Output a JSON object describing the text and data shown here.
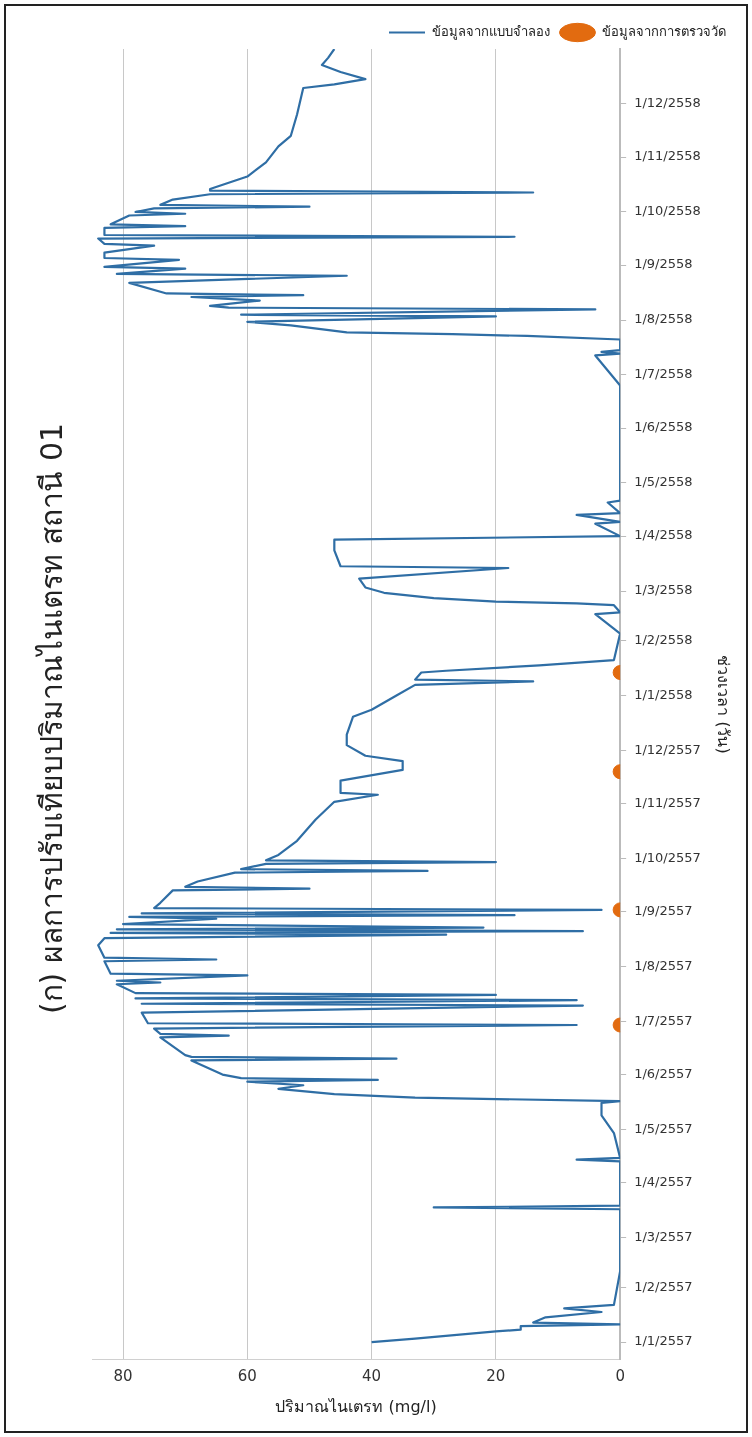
{
  "chart_data": {
    "type": "line",
    "title": "(ก) ผลการปรับเทียบปริมาณไนเตรท สถานี 01",
    "xlabel": "ปริมาณไนเตรท (mg/l)",
    "ylabel": "ช่วงเวลา (วัน)",
    "orientation": "horizontal",
    "xlim": [
      85,
      0
    ],
    "xticks": [
      0,
      20,
      40,
      60,
      80
    ],
    "ylim": [
      "2556-12-22",
      "2559-01-01"
    ],
    "yticks": [
      {
        "value": "2557-01-01",
        "label": "1/1/2557"
      },
      {
        "value": "2557-02-01",
        "label": "1/2/2557"
      },
      {
        "value": "2557-03-01",
        "label": "1/3/2557"
      },
      {
        "value": "2557-04-01",
        "label": "1/4/2557"
      },
      {
        "value": "2557-05-01",
        "label": "1/5/2557"
      },
      {
        "value": "2557-06-01",
        "label": "1/6/2557"
      },
      {
        "value": "2557-07-01",
        "label": "1/7/2557"
      },
      {
        "value": "2557-08-01",
        "label": "1/8/2557"
      },
      {
        "value": "2557-09-01",
        "label": "1/9/2557"
      },
      {
        "value": "2557-10-01",
        "label": "1/10/2557"
      },
      {
        "value": "2557-11-01",
        "label": "1/11/2557"
      },
      {
        "value": "2557-12-01",
        "label": "1/12/2557"
      },
      {
        "value": "2558-01-01",
        "label": "1/1/2558"
      },
      {
        "value": "2558-02-01",
        "label": "1/2/2558"
      },
      {
        "value": "2558-03-01",
        "label": "1/3/2558"
      },
      {
        "value": "2558-04-01",
        "label": "1/4/2558"
      },
      {
        "value": "2558-05-01",
        "label": "1/5/2558"
      },
      {
        "value": "2558-06-01",
        "label": "1/6/2558"
      },
      {
        "value": "2558-07-01",
        "label": "1/7/2558"
      },
      {
        "value": "2558-08-01",
        "label": "1/8/2558"
      },
      {
        "value": "2558-09-01",
        "label": "1/9/2558"
      },
      {
        "value": "2558-10-01",
        "label": "1/10/2558"
      },
      {
        "value": "2558-11-01",
        "label": "1/11/2558"
      },
      {
        "value": "2558-12-01",
        "label": "1/12/2558"
      }
    ],
    "grid": "x",
    "legend": "top right",
    "line_style": "solid",
    "series": [
      {
        "name": "ข้อมูลจากแบบจำลอง",
        "color": "#2f6ea5",
        "x": [
          "2557-01-01",
          "2557-01-03",
          "2557-01-07",
          "2557-01-08",
          "2557-01-10",
          "2557-01-11",
          "2557-01-12",
          "2557-01-15",
          "2557-01-18",
          "2557-01-20",
          "2557-01-22",
          "2557-02-10",
          "2557-03-02",
          "2557-03-17",
          "2557-03-18",
          "2557-03-19",
          "2557-04-13",
          "2557-04-14",
          "2557-04-15",
          "2557-04-29",
          "2557-05-09",
          "2557-05-16",
          "2557-05-17",
          "2557-05-19",
          "2557-05-21",
          "2557-05-24",
          "2557-05-26",
          "2557-05-28",
          "2557-05-29",
          "2557-05-30",
          "2557-06-01",
          "2557-06-09",
          "2557-06-10",
          "2557-06-11",
          "2557-06-12",
          "2557-06-22",
          "2557-06-23",
          "2557-06-24",
          "2557-06-27",
          "2557-06-29",
          "2557-06-30",
          "2557-07-06",
          "2557-07-10",
          "2557-07-11",
          "2557-07-13",
          "2557-07-14",
          "2557-07-16",
          "2557-07-17",
          "2557-07-22",
          "2557-07-23",
          "2557-07-24",
          "2557-07-27",
          "2557-07-28",
          "2557-08-04",
          "2557-08-05",
          "2557-08-06",
          "2557-08-13",
          "2557-08-17",
          "2557-08-19",
          "2557-08-20",
          "2557-08-21",
          "2557-08-22",
          "2557-08-23",
          "2557-08-25",
          "2557-08-28",
          "2557-08-29",
          "2557-08-30",
          "2557-08-31",
          "2557-09-02",
          "2557-09-03",
          "2557-09-06",
          "2557-09-13",
          "2557-09-14",
          "2557-09-15",
          "2557-09-18",
          "2557-09-23",
          "2557-09-24",
          "2557-09-25",
          "2557-09-28",
          "2557-09-29",
          "2557-09-30",
          "2557-10-03",
          "2557-10-11",
          "2557-10-23",
          "2557-11-02",
          "2557-11-06",
          "2557-11-07",
          "2557-11-14",
          "2557-11-20",
          "2557-11-25",
          "2557-11-28",
          "2557-12-04",
          "2557-12-10",
          "2557-12-20",
          "2557-12-24",
          "2558-01-01",
          "2558-01-07",
          "2558-01-09",
          "2558-01-10",
          "2558-01-14",
          "2558-01-15",
          "2558-01-18",
          "2558-01-21",
          "2558-02-05",
          "2558-02-16",
          "2558-02-17",
          "2558-02-21",
          "2558-02-22",
          "2558-02-23",
          "2558-02-25",
          "2558-02-28",
          "2558-03-03",
          "2558-03-08",
          "2558-03-14",
          "2558-03-15",
          "2558-03-24",
          "2558-03-30",
          "2558-04-01",
          "2558-04-08",
          "2558-04-09",
          "2558-04-13",
          "2558-04-14",
          "2558-04-20",
          "2558-04-21",
          "2558-06-25",
          "2558-07-12",
          "2558-07-13",
          "2558-07-14",
          "2558-07-15",
          "2558-07-21",
          "2558-07-23",
          "2558-07-24",
          "2558-07-25",
          "2558-07-29",
          "2558-07-31",
          "2558-08-03",
          "2558-08-04",
          "2558-08-07",
          "2558-08-08",
          "2558-08-09",
          "2558-08-12",
          "2558-08-14",
          "2558-08-15",
          "2558-08-16",
          "2558-08-22",
          "2558-08-26",
          "2558-08-27",
          "2558-08-30",
          "2558-08-31",
          "2558-09-04",
          "2558-09-05",
          "2558-09-08",
          "2558-09-12",
          "2558-09-13",
          "2558-09-16",
          "2558-09-17",
          "2558-09-18",
          "2558-09-22",
          "2558-09-23",
          "2558-09-24",
          "2558-09-29",
          "2558-09-30",
          "2558-10-01",
          "2558-10-03",
          "2558-10-04",
          "2558-10-05",
          "2558-10-08",
          "2558-10-11",
          "2558-10-12",
          "2558-10-13",
          "2558-10-14",
          "2558-10-21",
          "2558-10-29",
          "2558-11-07",
          "2558-11-13",
          "2558-11-25",
          "2558-12-10",
          "2558-12-12",
          "2558-12-15",
          "2558-12-19",
          "2558-12-23",
          "2558-12-27",
          "2559-01-01"
        ],
        "values": [
          40,
          33,
          20,
          16,
          16,
          0,
          14,
          12,
          3,
          9,
          1,
          0,
          0,
          0,
          30,
          0,
          0,
          7,
          0,
          1,
          3,
          3,
          0,
          33,
          46,
          55,
          51,
          60,
          39,
          61,
          64,
          69,
          36,
          69,
          70,
          74,
          63,
          74,
          75,
          7,
          76,
          77,
          6,
          77,
          7,
          78,
          20,
          78,
          81,
          74,
          81,
          60,
          82,
          83,
          65,
          83,
          84,
          83,
          28,
          82,
          6,
          81,
          22,
          80,
          65,
          79,
          17,
          77,
          3,
          75,
          74,
          72,
          50,
          70,
          68,
          62,
          31,
          61,
          57,
          20,
          57,
          55,
          52,
          49,
          46,
          39,
          45,
          45,
          35,
          35,
          41,
          44,
          44,
          43,
          40,
          36,
          33,
          14,
          33,
          32,
          28,
          13,
          1,
          0,
          4,
          0,
          1,
          7,
          20,
          30,
          38,
          41,
          42,
          18,
          45,
          46,
          46,
          0,
          4,
          0,
          7,
          0,
          2,
          0,
          0,
          4,
          0,
          3,
          0,
          0,
          15,
          27,
          44,
          53,
          60,
          20,
          61,
          4,
          63,
          66,
          58,
          69,
          51,
          73,
          79,
          44,
          81,
          70,
          83,
          71,
          83,
          83,
          75,
          83,
          84,
          17,
          83,
          83,
          70,
          82,
          79,
          70,
          78,
          75,
          50,
          74,
          72,
          66,
          14,
          66,
          66,
          60,
          57,
          55,
          53,
          52,
          51,
          46,
          41,
          45,
          48,
          47,
          46
        ]
      },
      {
        "name": "ข้อมูลจากการตรวจวัด",
        "type": "scatter",
        "color": "#e26b10",
        "marker": "circle",
        "x": [
          "2557-06-29",
          "2557-09-02",
          "2557-11-19",
          "2558-01-14"
        ],
        "values": [
          0,
          0,
          0,
          0
        ]
      }
    ]
  }
}
